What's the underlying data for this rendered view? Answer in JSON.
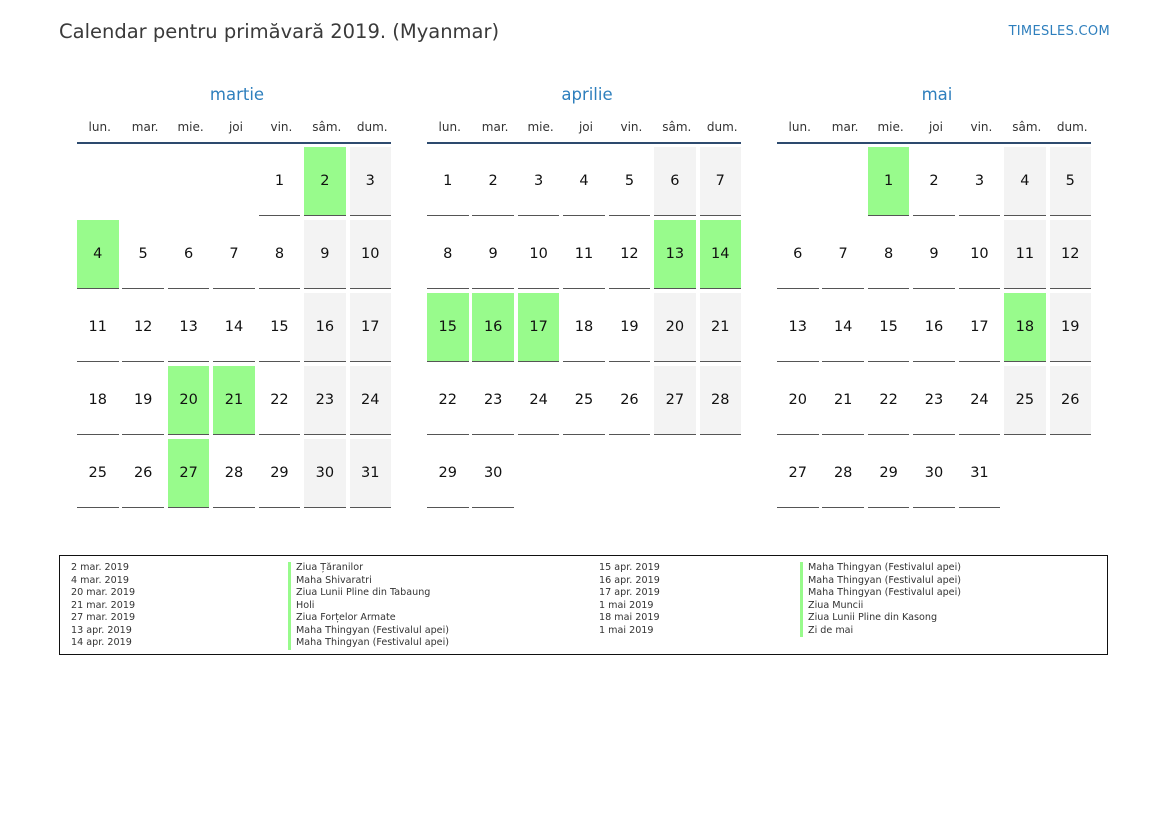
{
  "title": "Calendar pentru primăvară 2019. (Myanmar)",
  "brand": "TIMESLES.COM",
  "colors": {
    "accent": "#2e7fbd",
    "holiday": "#98fb8c",
    "weekend": "#f3f3f3"
  },
  "weekdays": [
    "lun.",
    "mar.",
    "mie.",
    "joi",
    "vin.",
    "sâm.",
    "dum."
  ],
  "months": [
    {
      "name": "martie",
      "start_offset": 4,
      "days": 31,
      "holidays": [
        2,
        4,
        20,
        21,
        27
      ]
    },
    {
      "name": "aprilie",
      "start_offset": 0,
      "days": 30,
      "holidays": [
        13,
        14,
        15,
        16,
        17
      ]
    },
    {
      "name": "mai",
      "start_offset": 2,
      "days": 31,
      "holidays": [
        1,
        18
      ]
    }
  ],
  "legend": {
    "left": [
      {
        "date": "2 mar. 2019",
        "name": "Ziua Țăranilor"
      },
      {
        "date": "4 mar. 2019",
        "name": "Maha Shivaratri"
      },
      {
        "date": "20 mar. 2019",
        "name": "Ziua Lunii Pline din Tabaung"
      },
      {
        "date": "21 mar. 2019",
        "name": "Holi"
      },
      {
        "date": "27 mar. 2019",
        "name": "Ziua Forțelor Armate"
      },
      {
        "date": "13 apr. 2019",
        "name": "Maha Thingyan (Festivalul apei)"
      },
      {
        "date": "14 apr. 2019",
        "name": "Maha Thingyan (Festivalul apei)"
      }
    ],
    "right": [
      {
        "date": "15 apr. 2019",
        "name": "Maha Thingyan (Festivalul apei)"
      },
      {
        "date": "16 apr. 2019",
        "name": "Maha Thingyan (Festivalul apei)"
      },
      {
        "date": "17 apr. 2019",
        "name": "Maha Thingyan (Festivalul apei)"
      },
      {
        "date": "1 mai 2019",
        "name": "Ziua Muncii"
      },
      {
        "date": "18 mai 2019",
        "name": "Ziua Lunii Pline din Kasong"
      },
      {
        "date": "1 mai 2019",
        "name": "Zi de mai"
      }
    ]
  }
}
